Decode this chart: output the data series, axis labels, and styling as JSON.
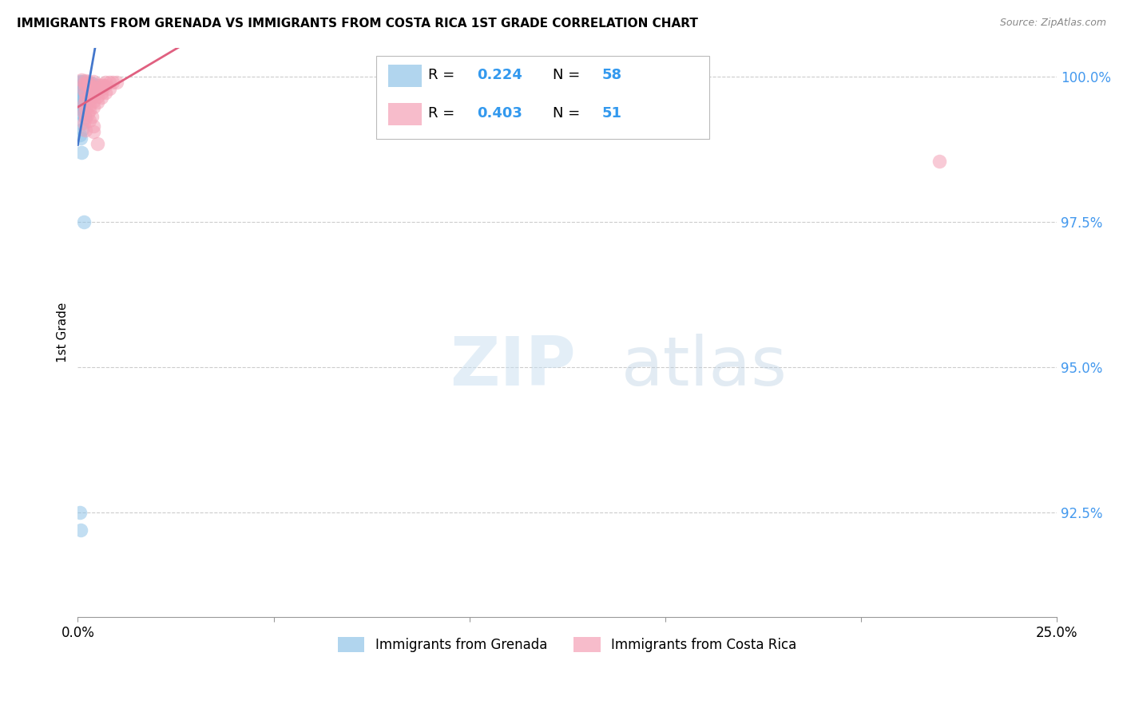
{
  "title": "IMMIGRANTS FROM GRENADA VS IMMIGRANTS FROM COSTA RICA 1ST GRADE CORRELATION CHART",
  "source": "Source: ZipAtlas.com",
  "ylabel": "1st Grade",
  "ytick_labels": [
    "92.5%",
    "95.0%",
    "97.5%",
    "100.0%"
  ],
  "ytick_values": [
    0.925,
    0.95,
    0.975,
    1.0
  ],
  "xlim": [
    0.0,
    0.25
  ],
  "ylim": [
    0.907,
    1.005
  ],
  "legend_blue_r": "0.224",
  "legend_blue_n": "58",
  "legend_pink_r": "0.403",
  "legend_pink_n": "51",
  "legend_blue_label": "Immigrants from Grenada",
  "legend_pink_label": "Immigrants from Costa Rica",
  "blue_color": "#90C4E8",
  "pink_color": "#F4A0B5",
  "blue_line_color": "#4477CC",
  "pink_line_color": "#E06080",
  "blue_scatter": [
    [
      0.0005,
      0.9992
    ],
    [
      0.001,
      0.9992
    ],
    [
      0.0015,
      0.9992
    ],
    [
      0.002,
      0.999
    ],
    [
      0.002,
      0.9988
    ],
    [
      0.0025,
      0.9988
    ],
    [
      0.003,
      0.9988
    ],
    [
      0.0035,
      0.9988
    ],
    [
      0.004,
      0.9988
    ],
    [
      0.001,
      0.9985
    ],
    [
      0.0012,
      0.9985
    ],
    [
      0.0015,
      0.9983
    ],
    [
      0.0018,
      0.9983
    ],
    [
      0.0022,
      0.9983
    ],
    [
      0.0025,
      0.9983
    ],
    [
      0.003,
      0.9983
    ],
    [
      0.0035,
      0.9982
    ],
    [
      0.0005,
      0.998
    ],
    [
      0.001,
      0.998
    ],
    [
      0.0012,
      0.998
    ],
    [
      0.0015,
      0.998
    ],
    [
      0.0018,
      0.9978
    ],
    [
      0.0022,
      0.9978
    ],
    [
      0.0025,
      0.9978
    ],
    [
      0.003,
      0.9977
    ],
    [
      0.0005,
      0.9975
    ],
    [
      0.0008,
      0.9975
    ],
    [
      0.001,
      0.9975
    ],
    [
      0.0015,
      0.9974
    ],
    [
      0.0018,
      0.9973
    ],
    [
      0.0022,
      0.9972
    ],
    [
      0.0005,
      0.997
    ],
    [
      0.001,
      0.997
    ],
    [
      0.0015,
      0.9968
    ],
    [
      0.0005,
      0.9965
    ],
    [
      0.0008,
      0.9963
    ],
    [
      0.001,
      0.9962
    ],
    [
      0.0012,
      0.996
    ],
    [
      0.0015,
      0.996
    ],
    [
      0.0008,
      0.9958
    ],
    [
      0.001,
      0.9958
    ],
    [
      0.0005,
      0.9955
    ],
    [
      0.0008,
      0.9955
    ],
    [
      0.0005,
      0.9952
    ],
    [
      0.0008,
      0.995
    ],
    [
      0.001,
      0.9948
    ],
    [
      0.0005,
      0.9945
    ],
    [
      0.0015,
      0.9942
    ],
    [
      0.0005,
      0.9938
    ],
    [
      0.001,
      0.9935
    ],
    [
      0.0018,
      0.993
    ],
    [
      0.001,
      0.992
    ],
    [
      0.0012,
      0.991
    ],
    [
      0.0005,
      0.99
    ],
    [
      0.0008,
      0.9895
    ],
    [
      0.001,
      0.987
    ],
    [
      0.0015,
      0.975
    ],
    [
      0.0005,
      0.925
    ],
    [
      0.0008,
      0.922
    ]
  ],
  "pink_scatter": [
    [
      0.001,
      0.9995
    ],
    [
      0.002,
      0.9993
    ],
    [
      0.0025,
      0.9992
    ],
    [
      0.004,
      0.9992
    ],
    [
      0.007,
      0.9991
    ],
    [
      0.008,
      0.9991
    ],
    [
      0.009,
      0.9991
    ],
    [
      0.01,
      0.9991
    ],
    [
      0.0015,
      0.9988
    ],
    [
      0.002,
      0.9987
    ],
    [
      0.003,
      0.9987
    ],
    [
      0.005,
      0.9986
    ],
    [
      0.006,
      0.9986
    ],
    [
      0.0065,
      0.9985
    ],
    [
      0.007,
      0.9985
    ],
    [
      0.003,
      0.9983
    ],
    [
      0.004,
      0.9982
    ],
    [
      0.005,
      0.9981
    ],
    [
      0.006,
      0.998
    ],
    [
      0.008,
      0.998
    ],
    [
      0.0015,
      0.9977
    ],
    [
      0.003,
      0.9977
    ],
    [
      0.004,
      0.9975
    ],
    [
      0.005,
      0.9974
    ],
    [
      0.006,
      0.9973
    ],
    [
      0.007,
      0.9972
    ],
    [
      0.002,
      0.997
    ],
    [
      0.003,
      0.9968
    ],
    [
      0.004,
      0.9967
    ],
    [
      0.005,
      0.9966
    ],
    [
      0.006,
      0.9965
    ],
    [
      0.002,
      0.9962
    ],
    [
      0.003,
      0.996
    ],
    [
      0.004,
      0.9958
    ],
    [
      0.005,
      0.9956
    ],
    [
      0.0015,
      0.9953
    ],
    [
      0.003,
      0.995
    ],
    [
      0.004,
      0.9948
    ],
    [
      0.002,
      0.9945
    ],
    [
      0.003,
      0.9942
    ],
    [
      0.0015,
      0.9938
    ],
    [
      0.0025,
      0.9935
    ],
    [
      0.0035,
      0.9932
    ],
    [
      0.002,
      0.9928
    ],
    [
      0.003,
      0.9925
    ],
    [
      0.0015,
      0.992
    ],
    [
      0.004,
      0.9915
    ],
    [
      0.002,
      0.9908
    ],
    [
      0.004,
      0.9905
    ],
    [
      0.005,
      0.9885
    ],
    [
      0.22,
      0.9855
    ]
  ]
}
